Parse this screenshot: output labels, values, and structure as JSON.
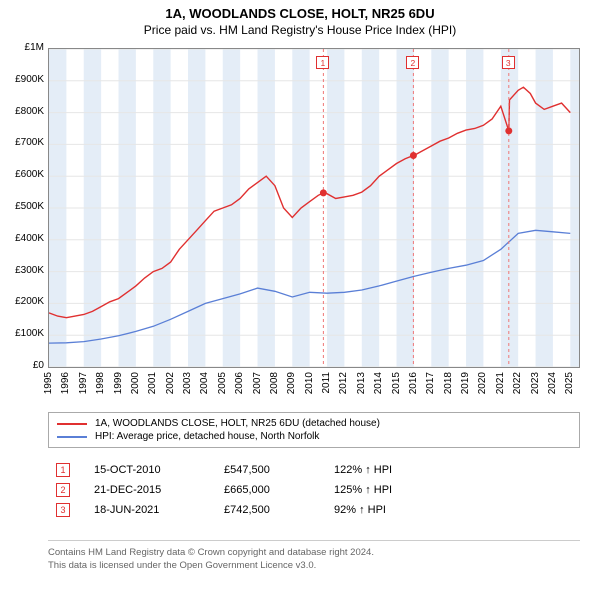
{
  "title": "1A, WOODLANDS CLOSE, HOLT, NR25 6DU",
  "subtitle": "Price paid vs. HM Land Registry's House Price Index (HPI)",
  "title_fontsize": 13,
  "subtitle_fontsize": 12,
  "chart": {
    "type": "line",
    "background_color": "#ffffff",
    "plot_border_color": "#888888",
    "grid_color": "#e6e6e6",
    "band_color": "#e4edf7",
    "xlim": [
      1995,
      2025.5
    ],
    "ylim": [
      0,
      1000000
    ],
    "xticks": [
      1995,
      1996,
      1997,
      1998,
      1999,
      2000,
      2001,
      2002,
      2003,
      2004,
      2005,
      2006,
      2007,
      2008,
      2009,
      2010,
      2011,
      2012,
      2013,
      2014,
      2015,
      2016,
      2017,
      2018,
      2019,
      2020,
      2021,
      2022,
      2023,
      2024,
      2025
    ],
    "yticks": [
      0,
      100000,
      200000,
      300000,
      400000,
      500000,
      600000,
      700000,
      800000,
      900000,
      1000000
    ],
    "ytick_labels": [
      "£0",
      "£100K",
      "£200K",
      "£300K",
      "£400K",
      "£500K",
      "£600K",
      "£700K",
      "£800K",
      "£900K",
      "£1M"
    ],
    "year_bands_even": true,
    "series": [
      {
        "name": "1A, WOODLANDS CLOSE, HOLT, NR25 6DU (detached house)",
        "color": "#e03030",
        "line_width": 1.4,
        "points": [
          [
            1995.0,
            170000
          ],
          [
            1995.5,
            160000
          ],
          [
            1996.0,
            155000
          ],
          [
            1996.5,
            160000
          ],
          [
            1997.0,
            165000
          ],
          [
            1997.5,
            175000
          ],
          [
            1998.0,
            190000
          ],
          [
            1998.5,
            205000
          ],
          [
            1999.0,
            215000
          ],
          [
            1999.5,
            235000
          ],
          [
            2000.0,
            255000
          ],
          [
            2000.5,
            280000
          ],
          [
            2001.0,
            300000
          ],
          [
            2001.5,
            310000
          ],
          [
            2002.0,
            330000
          ],
          [
            2002.5,
            370000
          ],
          [
            2003.0,
            400000
          ],
          [
            2003.5,
            430000
          ],
          [
            2004.0,
            460000
          ],
          [
            2004.5,
            490000
          ],
          [
            2005.0,
            500000
          ],
          [
            2005.5,
            510000
          ],
          [
            2006.0,
            530000
          ],
          [
            2006.5,
            560000
          ],
          [
            2007.0,
            580000
          ],
          [
            2007.5,
            600000
          ],
          [
            2008.0,
            570000
          ],
          [
            2008.5,
            500000
          ],
          [
            2009.0,
            470000
          ],
          [
            2009.5,
            500000
          ],
          [
            2010.0,
            520000
          ],
          [
            2010.5,
            540000
          ],
          [
            2010.79,
            547500
          ],
          [
            2011.0,
            545000
          ],
          [
            2011.5,
            530000
          ],
          [
            2012.0,
            535000
          ],
          [
            2012.5,
            540000
          ],
          [
            2013.0,
            550000
          ],
          [
            2013.5,
            570000
          ],
          [
            2014.0,
            600000
          ],
          [
            2014.5,
            620000
          ],
          [
            2015.0,
            640000
          ],
          [
            2015.5,
            655000
          ],
          [
            2015.97,
            665000
          ],
          [
            2016.0,
            665000
          ],
          [
            2016.5,
            680000
          ],
          [
            2017.0,
            695000
          ],
          [
            2017.5,
            710000
          ],
          [
            2018.0,
            720000
          ],
          [
            2018.5,
            735000
          ],
          [
            2019.0,
            745000
          ],
          [
            2019.5,
            750000
          ],
          [
            2020.0,
            760000
          ],
          [
            2020.5,
            780000
          ],
          [
            2021.0,
            820000
          ],
          [
            2021.46,
            742500
          ],
          [
            2021.5,
            840000
          ],
          [
            2022.0,
            870000
          ],
          [
            2022.3,
            880000
          ],
          [
            2022.7,
            860000
          ],
          [
            2023.0,
            830000
          ],
          [
            2023.5,
            810000
          ],
          [
            2024.0,
            820000
          ],
          [
            2024.5,
            830000
          ],
          [
            2025.0,
            800000
          ]
        ]
      },
      {
        "name": "HPI: Average price, detached house, North Norfolk",
        "color": "#5a7fd6",
        "line_width": 1.3,
        "points": [
          [
            1995.0,
            75000
          ],
          [
            1996.0,
            76000
          ],
          [
            1997.0,
            80000
          ],
          [
            1998.0,
            88000
          ],
          [
            1999.0,
            98000
          ],
          [
            2000.0,
            112000
          ],
          [
            2001.0,
            128000
          ],
          [
            2002.0,
            150000
          ],
          [
            2003.0,
            175000
          ],
          [
            2004.0,
            200000
          ],
          [
            2005.0,
            215000
          ],
          [
            2006.0,
            230000
          ],
          [
            2007.0,
            248000
          ],
          [
            2008.0,
            238000
          ],
          [
            2009.0,
            220000
          ],
          [
            2010.0,
            235000
          ],
          [
            2011.0,
            232000
          ],
          [
            2012.0,
            235000
          ],
          [
            2013.0,
            242000
          ],
          [
            2014.0,
            255000
          ],
          [
            2015.0,
            270000
          ],
          [
            2016.0,
            285000
          ],
          [
            2017.0,
            298000
          ],
          [
            2018.0,
            310000
          ],
          [
            2019.0,
            320000
          ],
          [
            2020.0,
            335000
          ],
          [
            2021.0,
            370000
          ],
          [
            2022.0,
            420000
          ],
          [
            2023.0,
            430000
          ],
          [
            2024.0,
            425000
          ],
          [
            2025.0,
            420000
          ]
        ]
      }
    ],
    "markers": [
      {
        "label": "1",
        "x": 2010.79,
        "y": 547500,
        "color": "#e03030",
        "radius": 3.5
      },
      {
        "label": "2",
        "x": 2015.97,
        "y": 665000,
        "color": "#e03030",
        "radius": 3.5
      },
      {
        "label": "3",
        "x": 2021.46,
        "y": 742500,
        "color": "#e03030",
        "radius": 3.5
      }
    ],
    "marker_dash_color": "#e77",
    "marker_badge_border": "#e03030",
    "marker_badge_text": "#e03030",
    "marker_badge_bg": "#ffffff"
  },
  "legend": {
    "border_color": "#aaaaaa",
    "items": [
      {
        "color": "#e03030",
        "label": "1A, WOODLANDS CLOSE, HOLT, NR25 6DU (detached house)"
      },
      {
        "color": "#5a7fd6",
        "label": "HPI: Average price, detached house, North Norfolk"
      }
    ]
  },
  "events": [
    {
      "badge": "1",
      "date": "15-OCT-2010",
      "price": "£547,500",
      "hpi": "122% ↑ HPI"
    },
    {
      "badge": "2",
      "date": "21-DEC-2015",
      "price": "£665,000",
      "hpi": "125% ↑ HPI"
    },
    {
      "badge": "3",
      "date": "18-JUN-2021",
      "price": "£742,500",
      "hpi": "92% ↑ HPI"
    }
  ],
  "footer": {
    "line1": "Contains HM Land Registry data © Crown copyright and database right 2024.",
    "line2": "This data is licensed under the Open Government Licence v3.0."
  }
}
